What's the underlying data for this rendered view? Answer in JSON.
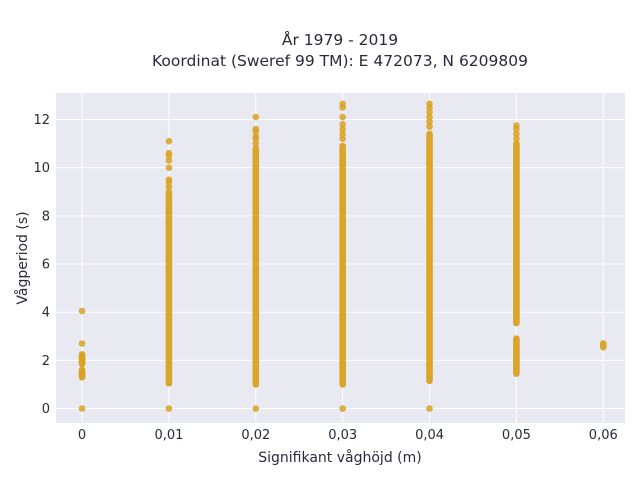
{
  "chart_data": {
    "type": "scatter",
    "title_line1": "År 1979 - 2019",
    "title_line2": "Koordinat (Sweref 99 TM): E 472073, N 6209809",
    "xlabel": "Signifikant våghöjd (m)",
    "ylabel": "Vågperiod (s)",
    "xlim": [
      -0.003,
      0.0625
    ],
    "ylim": [
      -0.6,
      13.1
    ],
    "x_ticks": [
      0,
      0.01,
      0.02,
      0.03,
      0.04,
      0.05,
      0.06
    ],
    "x_tick_labels": [
      "0",
      "0,01",
      "0,02",
      "0,03",
      "0,04",
      "0,05",
      "0,06"
    ],
    "y_ticks": [
      0,
      2,
      4,
      6,
      8,
      10,
      12
    ],
    "y_tick_labels": [
      "0",
      "2",
      "4",
      "6",
      "8",
      "10",
      "12"
    ],
    "grid": true,
    "colors": {
      "marker": "#d9a21f",
      "plot_bg": "#e8e9f1",
      "grid": "#ffffff",
      "text": "#2a2a3a"
    },
    "series": [
      {
        "x": 0,
        "dense_ranges": [
          [
            1.3,
            1.6
          ],
          [
            1.85,
            2.2
          ]
        ],
        "points": [
          0,
          4.05,
          2.7,
          2.25,
          2.1,
          2.0,
          1.9,
          1.55,
          1.45,
          1.35
        ]
      },
      {
        "x": 0.01,
        "dense_ranges": [
          [
            1.05,
            8.9
          ]
        ],
        "points": [
          0,
          9.0,
          9.2,
          9.4,
          9.5,
          10.0,
          10.3,
          10.5,
          10.6,
          11.1
        ]
      },
      {
        "x": 0.02,
        "dense_ranges": [
          [
            1.0,
            10.8
          ]
        ],
        "points": [
          0,
          11.0,
          11.2,
          11.3,
          11.5,
          11.6,
          12.1
        ]
      },
      {
        "x": 0.03,
        "dense_ranges": [
          [
            1.0,
            10.9
          ]
        ],
        "points": [
          0,
          11.2,
          11.4,
          11.6,
          11.8,
          12.1,
          12.5,
          12.65
        ]
      },
      {
        "x": 0.04,
        "dense_ranges": [
          [
            1.15,
            11.4
          ]
        ],
        "points": [
          0,
          11.7,
          11.9,
          12.1,
          12.3,
          12.5,
          12.65
        ]
      },
      {
        "x": 0.05,
        "dense_ranges": [
          [
            1.45,
            2.9
          ],
          [
            3.55,
            11.0
          ]
        ],
        "points": [
          11.2,
          11.4,
          11.6,
          11.75
        ]
      },
      {
        "x": 0.06,
        "dense_ranges": [
          [
            2.55,
            2.7
          ]
        ],
        "points": []
      }
    ]
  }
}
